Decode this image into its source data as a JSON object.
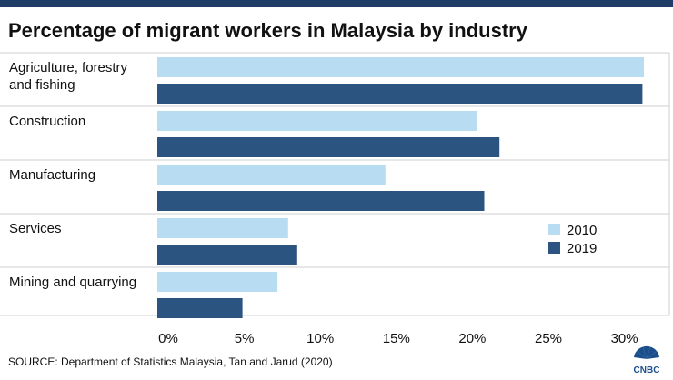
{
  "header": {
    "title": "Percentage of migrant workers in Malaysia by industry"
  },
  "footer": {
    "source": "SOURCE: Department of Statistics Malaysia, Tan and Jarud (2020)",
    "logo_text": "CNBC"
  },
  "colors": {
    "series_2010": "#b8dcf2",
    "series_2019": "#2b5580",
    "top_bar": "#1f3d66",
    "gridline": "#cfcfcf"
  },
  "chart_data": {
    "type": "bar",
    "orientation": "horizontal",
    "title": "Percentage of migrant workers in Malaysia by industry",
    "categories": [
      [
        "Agriculture, forestry",
        "and fishing"
      ],
      [
        "Construction"
      ],
      [
        "Manufacturing"
      ],
      [
        "Services"
      ],
      [
        "Mining and quarrying"
      ]
    ],
    "series": [
      {
        "name": "2010",
        "values": [
          32.0,
          21.0,
          15.0,
          8.6,
          7.9
        ]
      },
      {
        "name": "2019",
        "values": [
          31.9,
          22.5,
          21.5,
          9.2,
          5.6
        ]
      }
    ],
    "xlim": [
      0,
      32
    ],
    "xticks": [
      0,
      5,
      10,
      15,
      20,
      25,
      30
    ],
    "xtick_labels": [
      "0%",
      "5%",
      "10%",
      "15%",
      "20%",
      "25%",
      "30%"
    ],
    "legend_position": "right",
    "grid": "horizontal separators between categories"
  }
}
